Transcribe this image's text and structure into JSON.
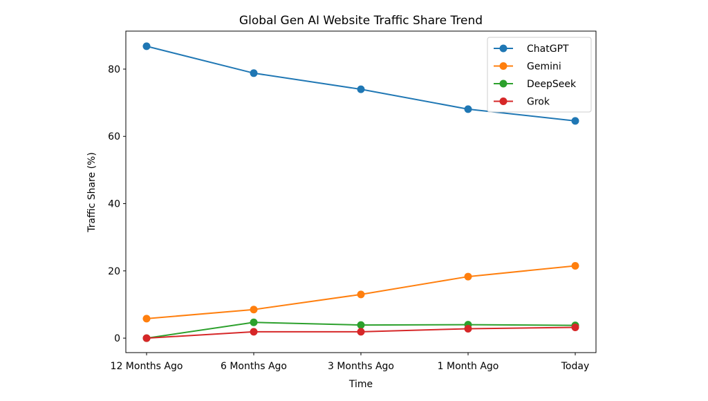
{
  "chart_data": {
    "type": "line",
    "title": "Global Gen AI Website Traffic Share Trend",
    "xlabel": "Time",
    "ylabel": "Traffic Share (%)",
    "categories": [
      "12 Months Ago",
      "6 Months Ago",
      "3 Months Ago",
      "1 Month Ago",
      "Today"
    ],
    "ylim": [
      -4.3,
      91.3
    ],
    "yticks": [
      0,
      20,
      40,
      60,
      80
    ],
    "grid": false,
    "legend_position": "top-right",
    "markers": "circle",
    "series": [
      {
        "name": "ChatGPT",
        "color": "#1f77b4",
        "values": [
          86.8,
          78.8,
          74.0,
          68.1,
          64.6
        ]
      },
      {
        "name": "Gemini",
        "color": "#ff7f0e",
        "values": [
          5.8,
          8.5,
          13.0,
          18.3,
          21.5
        ]
      },
      {
        "name": "DeepSeek",
        "color": "#2ca02c",
        "values": [
          0.0,
          4.7,
          3.9,
          4.0,
          3.8
        ]
      },
      {
        "name": "Grok",
        "color": "#d62728",
        "values": [
          0.0,
          1.9,
          1.9,
          2.8,
          3.2
        ]
      }
    ]
  }
}
